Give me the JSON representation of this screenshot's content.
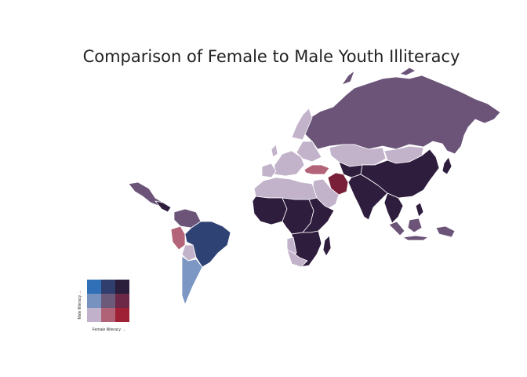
{
  "title": "Comparison of Female to Male Youth Illiteracy",
  "legend": {
    "x_label": "Female Illiteracy →",
    "y_label": "Male Illiteracy →",
    "grid_colors": [
      [
        "#3170b6",
        "#2f3e6c",
        "#2b1d3c"
      ],
      [
        "#7792bf",
        "#6b5a7a",
        "#6d2747"
      ],
      [
        "#c1b1cb",
        "#b06377",
        "#9e2136"
      ]
    ]
  },
  "colors": {
    "dark": "#2f1d3e",
    "medium_purple": "#6b5478",
    "light_lavender": "#c2b3cb",
    "navy": "#2f4274",
    "steel_blue": "#7c97c4",
    "rose": "#b36478",
    "crimson": "#7a1f3a"
  },
  "regions": [
    {
      "name": "North Africa",
      "color_class": "light_lavender"
    },
    {
      "name": "West Africa",
      "color_class": "dark"
    },
    {
      "name": "Central Africa",
      "color_class": "dark"
    },
    {
      "name": "East Africa",
      "color_class": "dark"
    },
    {
      "name": "Southern Africa",
      "color_class": "dark"
    },
    {
      "name": "Namibia",
      "color_class": "light_lavender"
    },
    {
      "name": "South Africa",
      "color_class": "light_lavender"
    },
    {
      "name": "Arabian Peninsula",
      "color_class": "light_lavender"
    },
    {
      "name": "Turkey",
      "color_class": "rose"
    },
    {
      "name": "Iran",
      "color_class": "crimson"
    },
    {
      "name": "South Asia",
      "color_class": "dark"
    },
    {
      "name": "China",
      "color_class": "dark"
    },
    {
      "name": "Mongolia",
      "color_class": "light_lavender"
    },
    {
      "name": "Russia",
      "color_class": "medium_purple"
    },
    {
      "name": "Kazakhstan",
      "color_class": "light_lavender"
    },
    {
      "name": "Southeast Asia",
      "color_class": "dark"
    },
    {
      "name": "Indonesia",
      "color_class": "medium_purple"
    },
    {
      "name": "Mexico",
      "color_class": "medium_purple"
    },
    {
      "name": "Central America",
      "color_class": "dark"
    },
    {
      "name": "Brazil",
      "color_class": "navy"
    },
    {
      "name": "Argentina",
      "color_class": "steel_blue"
    },
    {
      "name": "Peru",
      "color_class": "rose"
    },
    {
      "name": "Bolivia",
      "color_class": "light_lavender"
    },
    {
      "name": "Venezuela",
      "color_class": "medium_purple"
    },
    {
      "name": "Europe",
      "color_class": "light_lavender"
    }
  ]
}
